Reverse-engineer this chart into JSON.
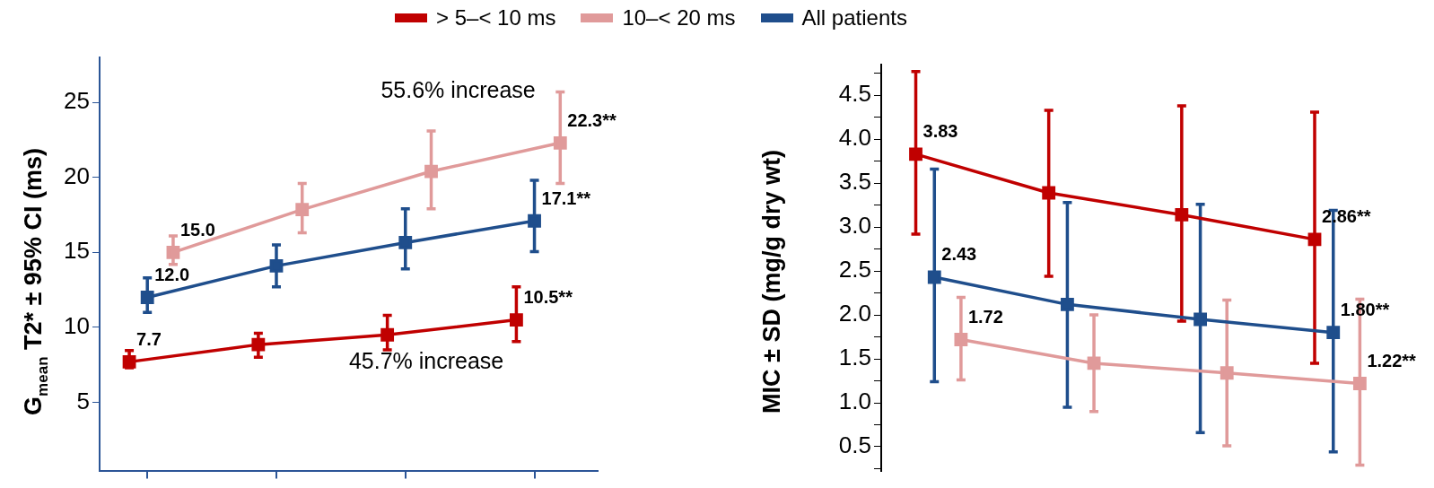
{
  "chart_data": [
    {
      "type": "line",
      "ylabel": "G$_{mean}$ T2* ± 95% CI (ms)",
      "categories": [
        null,
        null,
        null,
        null
      ],
      "ylim": [
        0.4,
        28
      ],
      "yticks": [
        5,
        10,
        15,
        20,
        25
      ],
      "tick_labels": "y",
      "marker": "square",
      "legend": "top",
      "annotations": [
        "55.6% increase",
        "45.7% increase"
      ],
      "series": [
        {
          "name": "> 5–< 10 ms",
          "color": "#c00000",
          "values": [
            7.7,
            8.85,
            9.5,
            10.5
          ],
          "errors": [
            [
              7.3,
              8.45
            ],
            [
              8.0,
              9.6
            ],
            [
              8.5,
              10.8
            ],
            [
              9.05,
              12.7
            ]
          ],
          "value_labels": [
            "7.7",
            null,
            null,
            "10.5**"
          ]
        },
        {
          "name": "10–< 20 ms",
          "color": "#e09a9a",
          "values": [
            15.0,
            17.85,
            20.4,
            22.3
          ],
          "errors": [
            [
              14.2,
              16.1
            ],
            [
              16.3,
              19.6
            ],
            [
              17.9,
              23.1
            ],
            [
              19.6,
              25.7
            ]
          ],
          "value_labels": [
            "15.0",
            null,
            null,
            "22.3**"
          ]
        },
        {
          "name": "All patients",
          "color": "#1f4e8c",
          "values": [
            12.0,
            14.1,
            15.65,
            17.1
          ],
          "errors": [
            [
              11.0,
              13.3
            ],
            [
              12.7,
              15.5
            ],
            [
              13.9,
              17.9
            ],
            [
              15.05,
              19.8
            ]
          ],
          "value_labels": [
            "12.0",
            null,
            null,
            "17.1**"
          ]
        }
      ]
    },
    {
      "type": "line",
      "ylabel": "MIC ± SD (mg/g dry wt)",
      "categories": [
        null,
        null,
        null,
        null
      ],
      "ylim": [
        0.22,
        4.85
      ],
      "yticks": [
        0.5,
        {
          "value": 1,
          "label": "1.0"
        },
        1.5,
        {
          "value": 2,
          "label": "2.0"
        },
        2.5,
        {
          "value": 3,
          "label": "3.0"
        },
        3.5,
        {
          "value": 4,
          "label": "4.0"
        },
        4.5,
        {
          "value": 0.25,
          "label": null
        },
        {
          "value": 0.75,
          "label": null
        },
        {
          "value": 1.25,
          "label": null
        },
        {
          "value": 1.75,
          "label": null
        },
        {
          "value": 2.25,
          "label": null
        },
        {
          "value": 2.75,
          "label": null
        },
        {
          "value": 3.25,
          "label": null
        },
        {
          "value": 3.75,
          "label": null
        },
        {
          "value": 4.25,
          "label": null
        },
        {
          "value": 4.75,
          "label": null
        }
      ],
      "tick_labels": "y",
      "marker": "square",
      "series": [
        {
          "color": "#c00000",
          "values": [
            3.83,
            3.39,
            3.14,
            2.86
          ],
          "errors": [
            [
              2.92,
              4.77
            ],
            [
              2.44,
              4.33
            ],
            [
              1.93,
              4.38
            ],
            [
              1.45,
              4.31
            ]
          ],
          "value_labels": [
            "3.83",
            null,
            null,
            "2.86**"
          ]
        },
        {
          "color": "#e09a9a",
          "values": [
            1.72,
            1.45,
            1.34,
            1.22
          ],
          "errors": [
            [
              1.26,
              2.2
            ],
            [
              0.9,
              2.0
            ],
            [
              0.51,
              2.17
            ],
            [
              0.29,
              2.18
            ]
          ],
          "value_labels": [
            "1.72",
            null,
            null,
            "1.22**"
          ]
        },
        {
          "color": "#1f4e8c",
          "values": [
            2.43,
            2.12,
            1.95,
            1.8
          ],
          "errors": [
            [
              1.24,
              3.66
            ],
            [
              0.95,
              3.28
            ],
            [
              0.66,
              3.26
            ],
            [
              0.44,
              3.19
            ]
          ],
          "value_labels": [
            "2.43",
            null,
            null,
            "1.80**"
          ]
        }
      ]
    }
  ]
}
